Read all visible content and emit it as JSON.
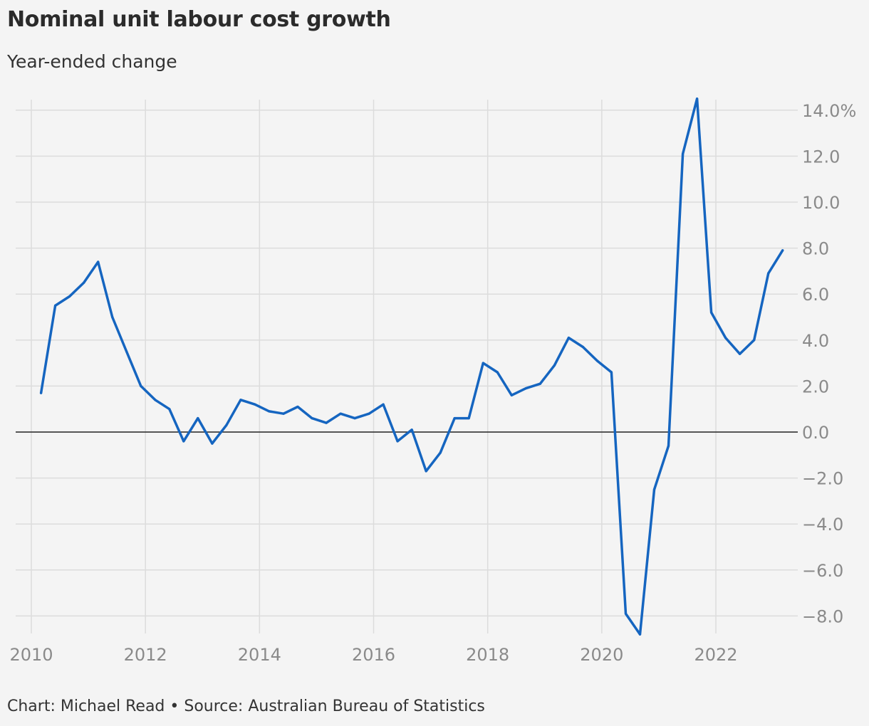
{
  "title": "Nominal unit labour cost growth",
  "subtitle": "Year-ended change",
  "footer": "Chart: Michael Read • Source: Australian Bureau of Statistics",
  "colors": {
    "line": "#1565c0",
    "grid": "#dcdcdc",
    "zero_line": "#222222",
    "tick_text": "#8a8a8a",
    "background": "#f4f4f4"
  },
  "chart_data": {
    "type": "line",
    "title": "Nominal unit labour cost growth",
    "subtitle": "Year-ended change",
    "xlabel": "",
    "ylabel": "",
    "xlim": [
      2010,
      2023.4
    ],
    "ylim": [
      -8.7,
      14.6
    ],
    "grid": true,
    "legend": "none",
    "x_ticks": [
      {
        "value": 2010,
        "label": "2010"
      },
      {
        "value": 2012,
        "label": "2012"
      },
      {
        "value": 2014,
        "label": "2014"
      },
      {
        "value": 2016,
        "label": "2016"
      },
      {
        "value": 2018,
        "label": "2018"
      },
      {
        "value": 2020,
        "label": "2020"
      },
      {
        "value": 2022,
        "label": "2022"
      }
    ],
    "y_ticks": [
      {
        "value": 14,
        "label": "14.0%"
      },
      {
        "value": 12,
        "label": "12.0"
      },
      {
        "value": 10,
        "label": "10.0"
      },
      {
        "value": 8,
        "label": "8.0"
      },
      {
        "value": 6,
        "label": "6.0"
      },
      {
        "value": 4,
        "label": "4.0"
      },
      {
        "value": 2,
        "label": "2.0"
      },
      {
        "value": 0,
        "label": "0.0"
      },
      {
        "value": -2,
        "label": "−2.0"
      },
      {
        "value": -4,
        "label": "−4.0"
      },
      {
        "value": -6,
        "label": "−6.0"
      },
      {
        "value": -8,
        "label": "−8.0"
      }
    ],
    "series": [
      {
        "x": [
          2010.17,
          2010.42,
          2010.67,
          2010.92,
          2011.17,
          2011.42,
          2011.67,
          2011.92,
          2012.17,
          2012.42,
          2012.67,
          2012.92,
          2013.17,
          2013.42,
          2013.67,
          2013.92,
          2014.17,
          2014.42,
          2014.67,
          2014.92,
          2015.17,
          2015.42,
          2015.67,
          2015.92,
          2016.17,
          2016.42,
          2016.67,
          2016.92,
          2017.17,
          2017.42,
          2017.67,
          2017.92,
          2018.17,
          2018.42,
          2018.67,
          2018.92,
          2019.17,
          2019.42,
          2019.67,
          2019.92,
          2020.17,
          2020.42,
          2020.67,
          2020.92,
          2021.17,
          2021.42,
          2021.67,
          2021.92,
          2022.17,
          2022.42,
          2022.67,
          2022.92,
          2023.17
        ],
        "values": [
          1.7,
          5.5,
          5.9,
          6.5,
          7.4,
          5.0,
          3.5,
          2.0,
          1.4,
          1.0,
          -0.4,
          0.6,
          -0.5,
          0.3,
          1.4,
          1.2,
          0.9,
          0.8,
          1.1,
          0.6,
          0.4,
          0.8,
          0.6,
          0.8,
          1.2,
          -0.4,
          0.1,
          -1.7,
          -0.9,
          0.6,
          0.6,
          3.0,
          2.6,
          1.6,
          1.9,
          2.1,
          2.9,
          4.1,
          3.7,
          3.1,
          2.6,
          -7.9,
          -8.8,
          -2.5,
          -0.6,
          12.1,
          14.5,
          5.2,
          4.1,
          3.4,
          4.0,
          6.9,
          7.9
        ]
      }
    ]
  }
}
